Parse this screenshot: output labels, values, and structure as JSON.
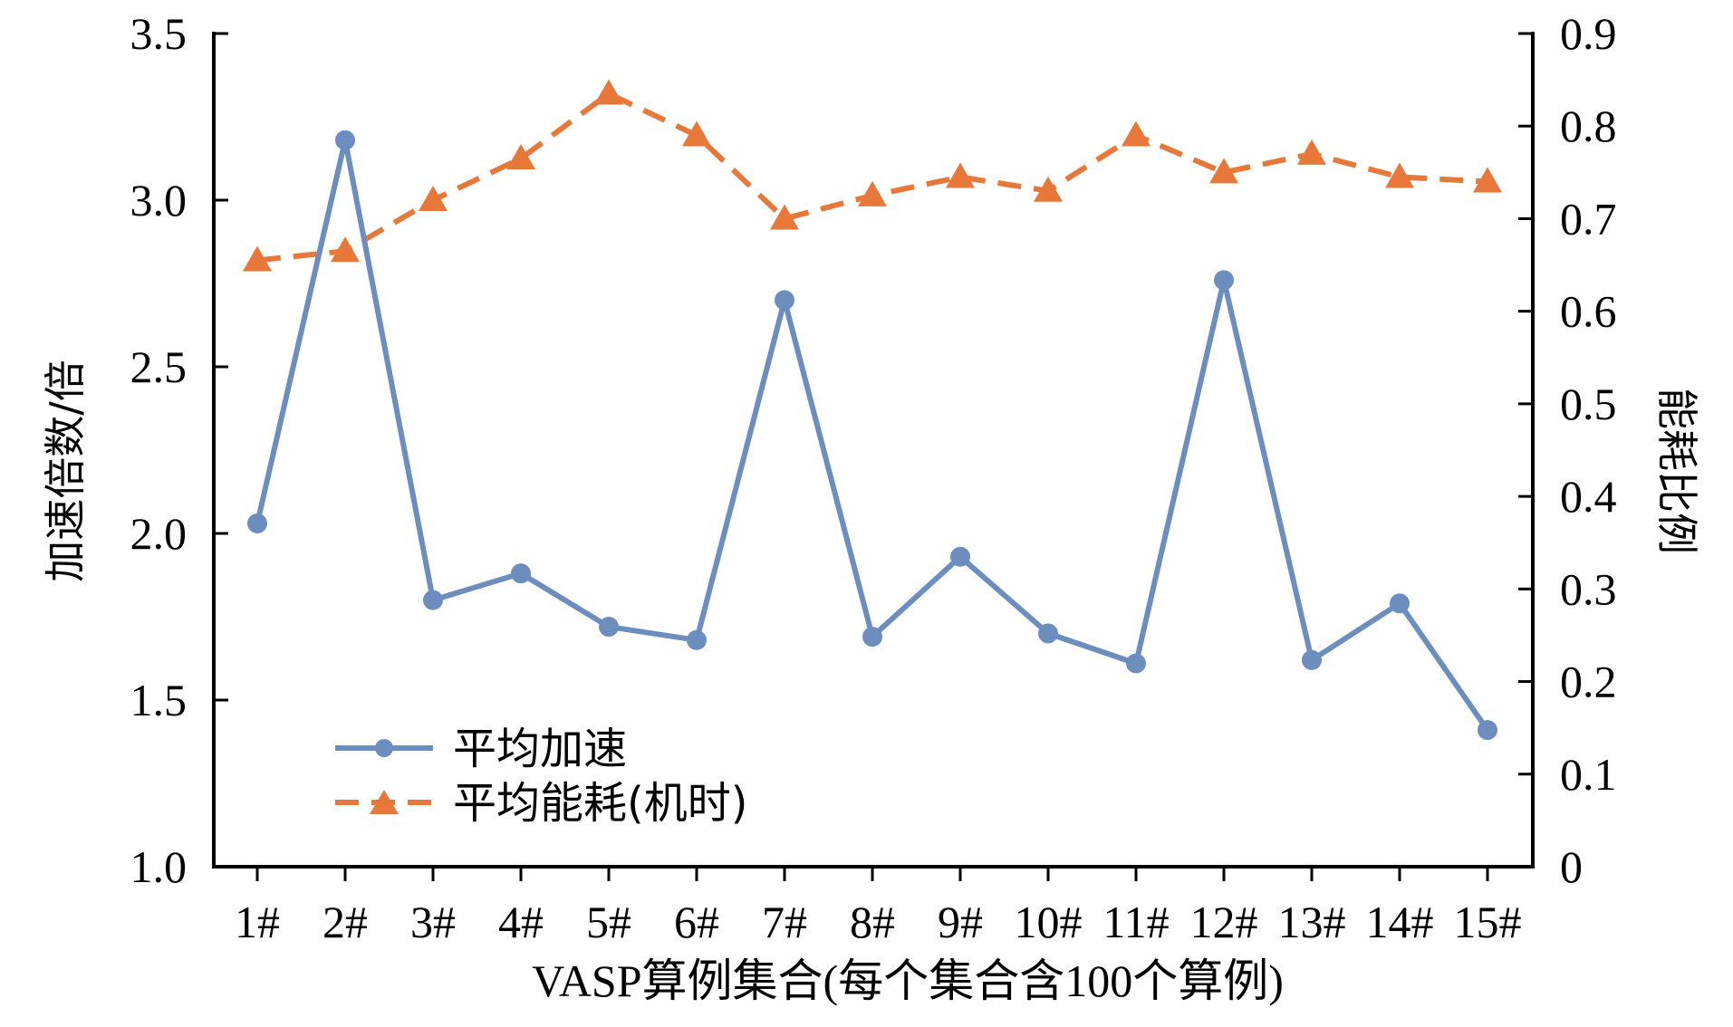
{
  "colors": {
    "speedup": "#6C8EBF",
    "energy": "#E8783A",
    "axis": "#000000"
  },
  "chart_data": {
    "type": "line",
    "categories": [
      "1#",
      "2#",
      "3#",
      "4#",
      "5#",
      "6#",
      "7#",
      "8#",
      "9#",
      "10#",
      "11#",
      "12#",
      "13#",
      "14#",
      "15#"
    ],
    "xlabel": "VASP算例集合(每个集合含100个算例)",
    "ylabel": "加速倍数/倍",
    "y2label": "能耗比例",
    "ylim": [
      1.0,
      3.5
    ],
    "y2lim": [
      0,
      0.9
    ],
    "yticks": [
      "1.0",
      "1.5",
      "2.0",
      "2.5",
      "3.0",
      "3.5"
    ],
    "y2ticks": [
      "0",
      "0.1",
      "0.2",
      "0.3",
      "0.4",
      "0.5",
      "0.6",
      "0.7",
      "0.8",
      "0.9"
    ],
    "grid": false,
    "legend_position": "bottom-left",
    "series": [
      {
        "name": "平均加速",
        "axis": "left",
        "marker": "circle",
        "line_style": "solid",
        "values": [
          2.03,
          3.18,
          1.8,
          1.88,
          1.72,
          1.68,
          2.7,
          1.69,
          1.93,
          1.7,
          1.61,
          2.76,
          1.62,
          1.79,
          1.41
        ]
      },
      {
        "name": "平均能耗(机时)",
        "axis": "right",
        "marker": "triangle",
        "line_style": "dashed",
        "values": [
          0.655,
          0.665,
          0.72,
          0.765,
          0.835,
          0.79,
          0.7,
          0.725,
          0.745,
          0.73,
          0.79,
          0.75,
          0.77,
          0.745,
          0.74
        ]
      }
    ]
  }
}
